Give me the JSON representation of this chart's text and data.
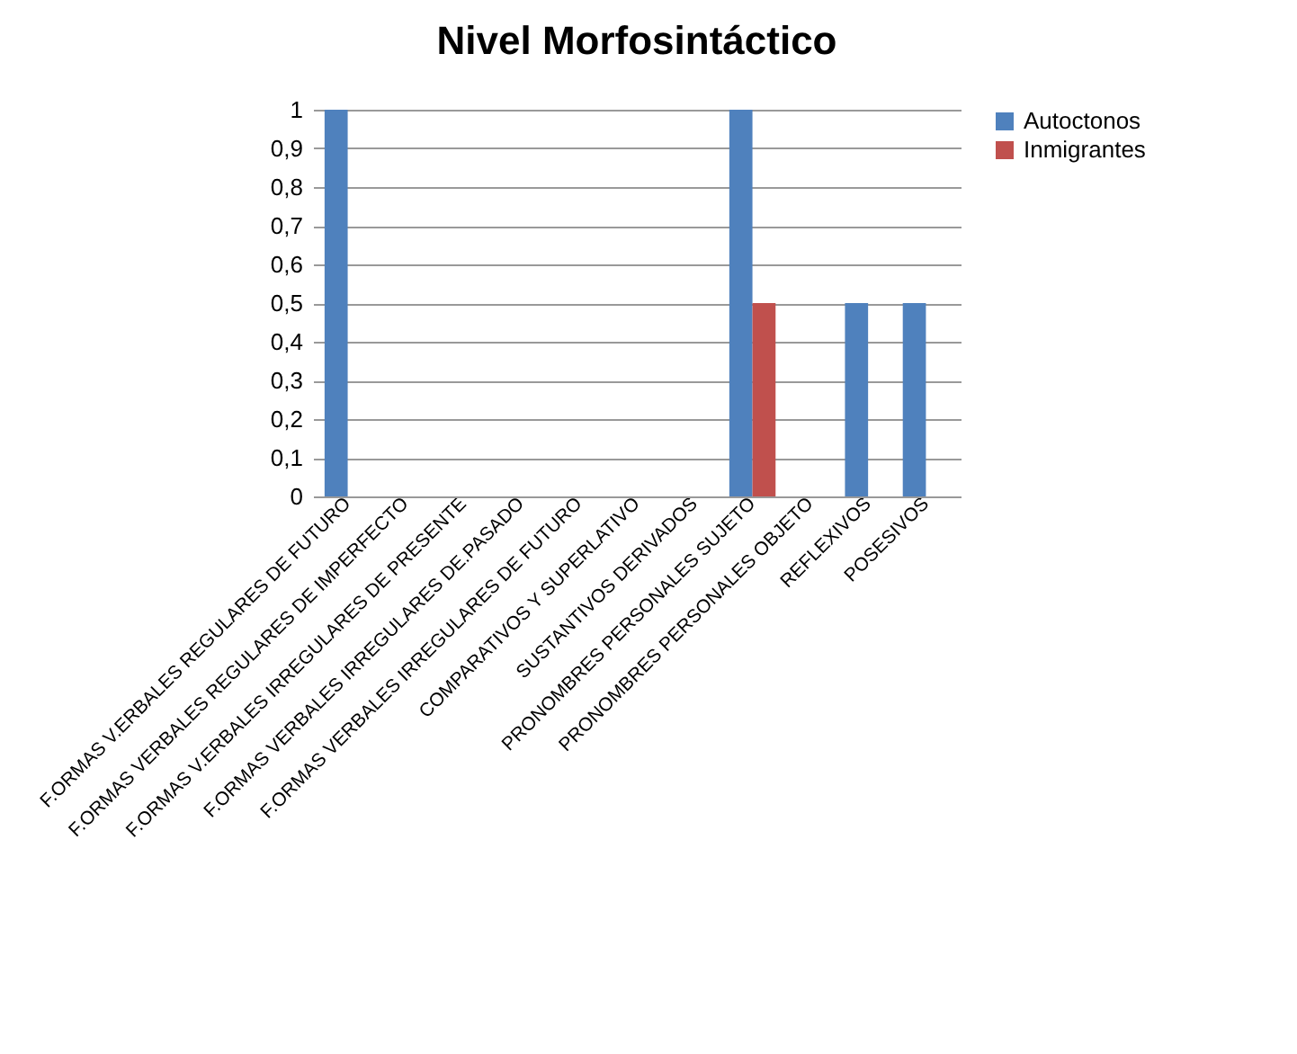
{
  "chart_data": {
    "type": "bar",
    "title": "Nivel Morfosintáctico",
    "categories": [
      "F.ORMAS V.ERBALES REGULARES DE FUTURO",
      "F.ORMAS VERBALES REGULARES DE  IMPERFECTO",
      "F.ORMAS V.ERBALES IRREGULARES DE PRESENTE",
      "F.ORMAS VERBALES IRREGULARES DE.PASADO",
      "F.ORMAS VERBALES IRREGULARES DE FUTURO",
      "COMPARATIVOS Y SUPERLATIVO",
      "SUSTANTIVOS DERIVADOS",
      "PRONOMBRES PERSONALES SUJETO",
      "PRONOMBRES PERSONALES OBJETO",
      "REFLEXIVOS",
      "POSESIVOS"
    ],
    "series": [
      {
        "name": "Autoctonos",
        "color": "#4f81bd",
        "values": [
          1,
          0,
          0,
          0,
          0,
          0,
          0,
          1,
          0,
          0.5,
          0.5
        ]
      },
      {
        "name": "Inmigrantes",
        "color": "#c0504d",
        "values": [
          0,
          0,
          0,
          0,
          0,
          0,
          0,
          0.5,
          0,
          0,
          0
        ]
      }
    ],
    "ylim": [
      0,
      1
    ],
    "yticks": [
      0,
      {
        "value": 0.1,
        "label": "0,1"
      },
      {
        "value": 0.2,
        "label": "0,2"
      },
      {
        "value": 0.3,
        "label": "0,3"
      },
      {
        "value": 0.4,
        "label": "0,4"
      },
      {
        "value": 0.5,
        "label": "0,5"
      },
      {
        "value": 0.6,
        "label": "0,6"
      },
      {
        "value": 0.7,
        "label": "0,7"
      },
      {
        "value": 0.8,
        "label": "0,8"
      },
      {
        "value": 0.9,
        "label": "0,9"
      },
      1
    ],
    "grid": "y",
    "legend": "right"
  }
}
